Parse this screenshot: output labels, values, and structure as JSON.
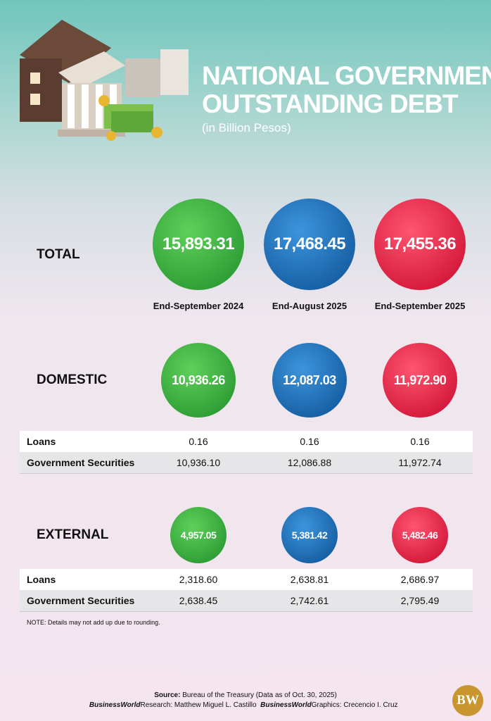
{
  "header": {
    "title_lines": [
      "NATIONAL GOVERNMENT",
      "OUTSTANDING DEBT"
    ],
    "subtitle": "(in Billion Pesos)"
  },
  "periods": [
    "End-September 2024",
    "End-August 2025",
    "End-September 2025"
  ],
  "sections": [
    {
      "label": "TOTAL",
      "values": [
        "15,893.31",
        "17,468.45",
        "17,455.36"
      ],
      "rows": []
    },
    {
      "label": "DOMESTIC",
      "values": [
        "10,936.26",
        "12,087.03",
        "11,972.90"
      ],
      "rows": [
        [
          "Loans",
          "0.16",
          "0.16",
          "0.16"
        ],
        [
          "Government Securities",
          "10,936.10",
          "12,086.88",
          "11,972.74"
        ]
      ]
    },
    {
      "label": "EXTERNAL",
      "values": [
        "4,957.05",
        "5,381.42",
        "5,482.46"
      ],
      "rows": [
        [
          "Loans",
          "2,318.60",
          "2,638.81",
          "2,686.97"
        ],
        [
          "Government Securities",
          "2,638.45",
          "2,742.61",
          "2,795.49"
        ]
      ]
    }
  ],
  "note": "NOTE: Details may not add up due to rounding.",
  "source": {
    "label": "Source:",
    "text": "Bureau of the Treasury (Data as of Oct. 30, 2025)"
  },
  "credits": [
    {
      "org": "BusinessWorld",
      "role": "Research:",
      "name": "Matthew Miguel L. Castillo"
    },
    {
      "org": "BusinessWorld",
      "role": "Graphics:",
      "name": "Crecencio I. Cruz"
    }
  ],
  "logo": "BW"
}
